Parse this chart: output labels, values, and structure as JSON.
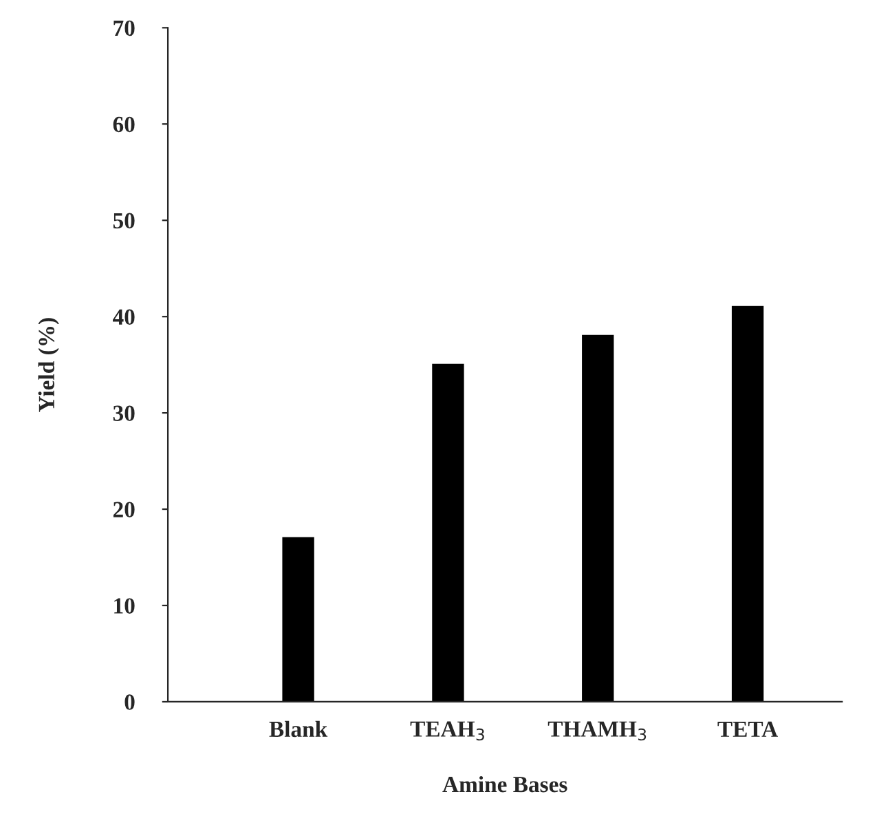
{
  "chart_data": {
    "type": "bar",
    "xlabel": "Amine Bases",
    "ylabel": "Yield (%)",
    "categories": [
      "Blank",
      "TEAH$_{3}$",
      "THAMH$_{3}$",
      "TETA"
    ],
    "values": [
      17,
      35,
      38,
      41
    ],
    "color": "#000000",
    "ylim": [
      0,
      70
    ],
    "yticks": [
      0,
      10,
      20,
      30,
      40,
      50,
      60,
      70
    ],
    "grid": false,
    "legend": false
  }
}
